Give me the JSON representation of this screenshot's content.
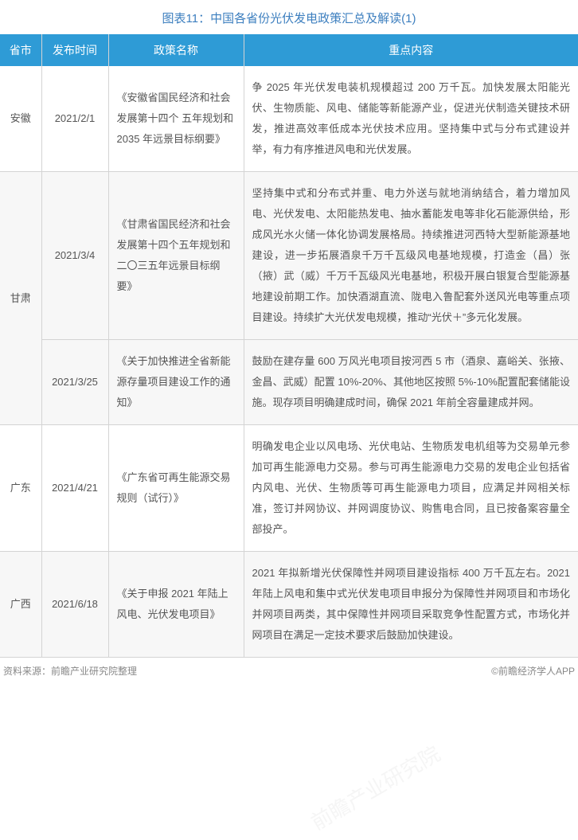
{
  "title": "图表11：中国各省份光伏发电政策汇总及解读(1)",
  "watermark": "前瞻产业研究院",
  "headers": {
    "province": "省市",
    "date": "发布时间",
    "policy": "政策名称",
    "content": "重点内容"
  },
  "rows": [
    {
      "province": "安徽",
      "date": "2021/2/1",
      "policy": "《安徽省国民经济和社会发展第十四个 五年规划和 2035 年远景目标纲要》",
      "content": "争 2025 年光伏发电装机规模超过 200 万千瓦。加快发展太阳能光伏、生物质能、风电、储能等新能源产业，促进光伏制造关键技术研发，推进高效率低成本光伏技术应用。坚持集中式与分布式建设并举，有力有序推进风电和光伏发展。",
      "rowspan": 1
    },
    {
      "province": "甘肃",
      "date": "2021/3/4",
      "policy": "《甘肃省国民经济和社会发展第十四个五年规划和二〇三五年远景目标纲要》",
      "content": "坚持集中式和分布式并重、电力外送与就地消纳结合，着力增加风电、光伏发电、太阳能热发电、抽水蓄能发电等非化石能源供给，形成风光水火储一体化协调发展格局。持续推进河西特大型新能源基地建设，进一步拓展酒泉千万千瓦级风电基地规模，打造金（昌）张（掖）武（威）千万千瓦级风光电基地，积极开展白银复合型能源基地建设前期工作。加快酒湖直流、陇电入鲁配套外送风光电等重点项目建设。持续扩大光伏发电规模，推动“光伏＋”多元化发展。",
      "rowspan": 2
    },
    {
      "province": "",
      "date": "2021/3/25",
      "policy": "《关于加快推进全省新能源存量项目建设工作的通知》",
      "content": "鼓励在建存量 600 万风光电项目按河西 5 市（酒泉、嘉峪关、张掖、金昌、武威）配置 10%-20%、其他地区按照 5%-10%配置配套储能设施。现存项目明确建成时间，确保 2021 年前全容量建成并网。",
      "rowspan": 0
    },
    {
      "province": "广东",
      "date": "2021/4/21",
      "policy": "《广东省可再生能源交易规则（试行）》",
      "content": "明确发电企业以风电场、光伏电站、生物质发电机组等为交易单元参加可再生能源电力交易。参与可再生能源电力交易的发电企业包括省内风电、光伏、生物质等可再生能源电力项目，应满足并网相关标准，签订并网协议、并网调度协议、购售电合同，且已按备案容量全部投产。",
      "rowspan": 1
    },
    {
      "province": "广西",
      "date": "2021/6/18",
      "policy": "《关于申报 2021 年陆上风电、光伏发电项目》",
      "content": "2021 年拟新增光伏保障性并网项目建设指标 400 万千瓦左右。2021 年陆上风电和集中式光伏发电项目申报分为保障性并网项目和市场化并网项目两类，其中保障性并网项目采取竞争性配置方式，市场化并网项目在满足一定技术要求后鼓励加快建设。",
      "rowspan": 1
    }
  ],
  "footer": {
    "source": "资料来源：前瞻产业研究院整理",
    "brand": "©前瞻经济学人APP"
  },
  "colors": {
    "header_bg": "#2e9bd6",
    "header_text": "#ffffff",
    "title_color": "#3d7fbf",
    "border_color": "#d4d4d4",
    "text_color": "#555555",
    "even_row_bg": "#f7f7f7",
    "odd_row_bg": "#ffffff",
    "footer_color": "#888888"
  }
}
